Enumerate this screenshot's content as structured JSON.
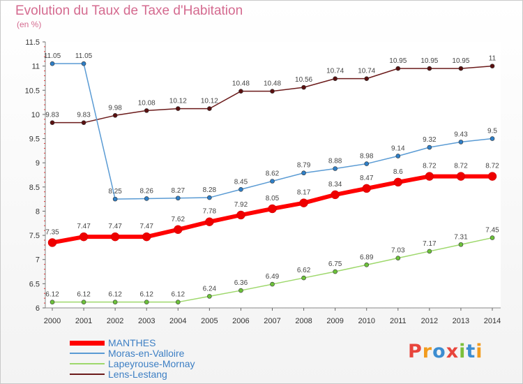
{
  "header": {
    "title": "Evolution du Taux de Taxe d'Habitation",
    "unit": "(en %)"
  },
  "logo": {
    "text": "Proxiti",
    "letters": [
      {
        "ch": "P",
        "color": "#e8453c"
      },
      {
        "ch": "r",
        "color": "#f29b1d"
      },
      {
        "ch": "o",
        "color": "#3c8dd1"
      },
      {
        "ch": "x",
        "color": "#e8453c"
      },
      {
        "ch": "i",
        "color": "#7bbf3a"
      },
      {
        "ch": "t",
        "color": "#3c8dd1"
      },
      {
        "ch": "i",
        "color": "#f29b1d"
      }
    ]
  },
  "chart_data": {
    "type": "line",
    "x": [
      "2000",
      "2001",
      "2002",
      "2003",
      "2004",
      "2005",
      "2006",
      "2007",
      "2008",
      "2009",
      "2010",
      "2011",
      "2012",
      "2013",
      "2014"
    ],
    "ylim": [
      6,
      11.5
    ],
    "yticks": [
      "6",
      "6.5",
      "7",
      "7.5",
      "8",
      "8.5",
      "9",
      "9.5",
      "10",
      "10.5",
      "11",
      "11.5"
    ],
    "grid": false,
    "legend_position": "bottom-left",
    "series": [
      {
        "name": "Lens-Lestang",
        "color": "#6b1a1a",
        "dot": "#5a1010",
        "emphasis": false,
        "values": [
          9.83,
          9.83,
          9.98,
          10.08,
          10.12,
          10.12,
          10.48,
          10.48,
          10.56,
          10.74,
          10.74,
          10.95,
          10.95,
          10.95,
          11
        ],
        "labels": [
          "9.83",
          "9.83",
          "9.98",
          "10.08",
          "10.12",
          "10.12",
          "10.48",
          "10.48",
          "10.56",
          "10.74",
          "10.74",
          "10.95",
          "10.95",
          "10.95",
          "11"
        ]
      },
      {
        "name": "Moras-en-Valloire",
        "color": "#5a9bd4",
        "dot": "#2f7fc7",
        "emphasis": false,
        "values": [
          11.05,
          11.05,
          8.25,
          8.26,
          8.27,
          8.28,
          8.45,
          8.62,
          8.79,
          8.88,
          8.98,
          9.14,
          9.32,
          9.43,
          9.5
        ],
        "labels": [
          "11.05",
          "11.05",
          "8.25",
          "8.26",
          "8.27",
          "8.28",
          "8.45",
          "8.62",
          "8.79",
          "8.88",
          "8.98",
          "9.14",
          "9.32",
          "9.43",
          "9.5"
        ]
      },
      {
        "name": "Lapeyrouse-Mornay",
        "color": "#9ed86c",
        "dot": "#6cc23a",
        "emphasis": false,
        "values": [
          6.12,
          6.12,
          6.12,
          6.12,
          6.12,
          6.24,
          6.36,
          6.49,
          6.62,
          6.75,
          6.89,
          7.03,
          7.17,
          7.31,
          7.45
        ],
        "labels": [
          "6.12",
          "6.12",
          "6.12",
          "6.12",
          "6.12",
          "6.24",
          "6.36",
          "6.49",
          "6.62",
          "6.75",
          "6.89",
          "7.03",
          "7.17",
          "7.31",
          "7.45"
        ]
      },
      {
        "name": "MANTHES",
        "color": "#ff0000",
        "dot": "#ee0000",
        "emphasis": true,
        "values": [
          7.35,
          7.47,
          7.47,
          7.47,
          7.62,
          7.78,
          7.92,
          8.05,
          8.17,
          8.34,
          8.47,
          8.6,
          8.72,
          8.72,
          8.72
        ],
        "labels": [
          "7.35",
          "7.47",
          "7.47",
          "7.47",
          "7.62",
          "7.78",
          "7.92",
          "8.05",
          "8.17",
          "8.34",
          "8.47",
          "8.6",
          "8.72",
          "8.72",
          "8.72"
        ]
      }
    ],
    "legend_order": [
      "MANTHES",
      "Moras-en-Valloire",
      "Lapeyrouse-Mornay",
      "Lens-Lestang"
    ]
  }
}
